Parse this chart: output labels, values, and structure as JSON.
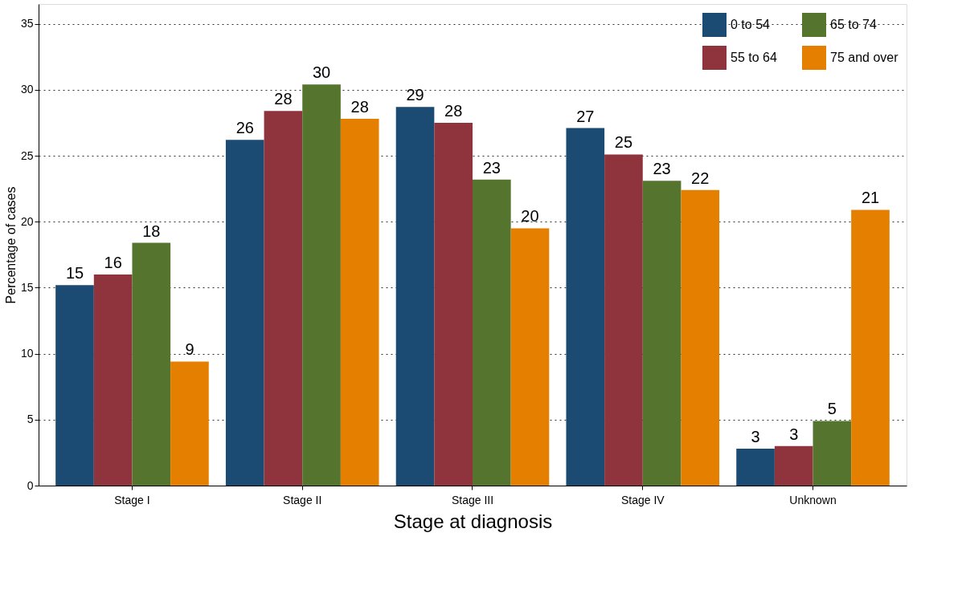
{
  "chart_data": {
    "type": "bar",
    "xlabel": "Stage at diagnosis",
    "ylabel": "Percentage of cases",
    "categories": [
      "Stage I",
      "Stage II",
      "Stage III",
      "Stage IV",
      "Unknown"
    ],
    "series": [
      {
        "name": "0 to 54",
        "color": "#1b4a72",
        "values": [
          15.2,
          26.2,
          28.7,
          27.1,
          2.8
        ],
        "value_labels": [
          "15",
          "26",
          "29",
          "27",
          "3"
        ]
      },
      {
        "name": "55 to 64",
        "color": "#8f333c",
        "values": [
          16.0,
          28.4,
          27.5,
          25.1,
          3.0
        ],
        "value_labels": [
          "16",
          "28",
          "28",
          "25",
          "3"
        ]
      },
      {
        "name": "65 to 74",
        "color": "#55752f",
        "values": [
          18.4,
          30.4,
          23.2,
          23.1,
          4.9
        ],
        "value_labels": [
          "18",
          "30",
          "23",
          "23",
          "5"
        ]
      },
      {
        "name": "75 and over",
        "color": "#e47f00",
        "values": [
          9.4,
          27.8,
          19.5,
          22.4,
          20.9
        ],
        "value_labels": [
          "9",
          "28",
          "20",
          "22",
          "21"
        ]
      }
    ],
    "ylim": [
      0,
      36.5
    ],
    "yticks": [
      0,
      5,
      10,
      15,
      20,
      25,
      30,
      35
    ],
    "grid": "y",
    "legend": "top right"
  }
}
